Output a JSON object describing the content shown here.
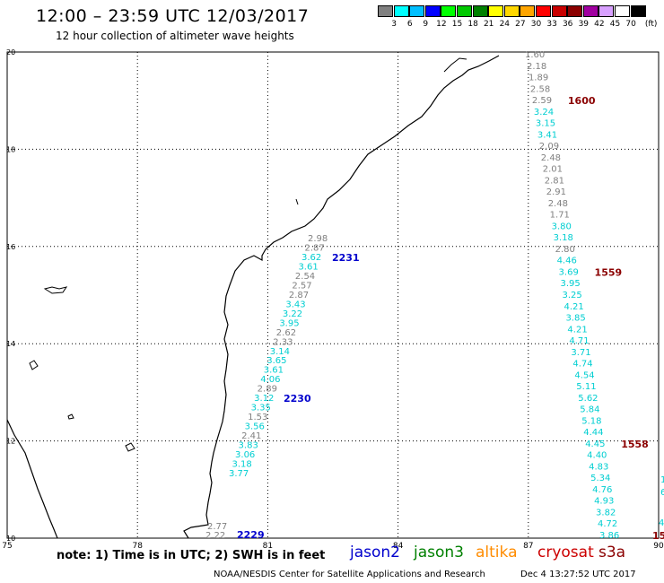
{
  "header": {
    "title": "12:00 – 23:59 UTC 12/03/2017",
    "subtitle": "12 hour collection of altimeter wave heights"
  },
  "colorbar": {
    "labels": [
      "3",
      "6",
      "9",
      "12",
      "15",
      "18",
      "21",
      "24",
      "27",
      "30",
      "33",
      "36",
      "39",
      "42",
      "45",
      "70"
    ],
    "unit": "(ft)",
    "colors": [
      "#808080",
      "#00ffff",
      "#00bfff",
      "#0000ff",
      "#00ff00",
      "#00c800",
      "#008000",
      "#ffff00",
      "#ffd700",
      "#ffa500",
      "#ff0000",
      "#c80000",
      "#8b0000",
      "#a000a0",
      "#d8a0ff",
      "#ffffff",
      "#000000"
    ]
  },
  "axes": {
    "lon_ticks": [
      "75",
      "78",
      "81",
      "84",
      "87",
      "90"
    ],
    "lat_ticks": [
      "20",
      "18",
      "16",
      "14",
      "12",
      "10"
    ],
    "lon_range": [
      75,
      90
    ],
    "lat_range": [
      10,
      20
    ]
  },
  "tracks": [
    {
      "time": "1600",
      "color": "#8b0000",
      "values": [
        {
          "v": "1.60",
          "c": "#808080"
        },
        {
          "v": "2.18",
          "c": "#808080"
        },
        {
          "v": "1.89",
          "c": "#808080"
        },
        {
          "v": "2.58",
          "c": "#808080"
        },
        {
          "v": "2.59",
          "c": "#808080"
        },
        {
          "v": "3.24",
          "c": "#00ced1"
        },
        {
          "v": "3.15",
          "c": "#00ced1"
        },
        {
          "v": "3.41",
          "c": "#00ced1"
        },
        {
          "v": "2.09",
          "c": "#808080"
        },
        {
          "v": "2.48",
          "c": "#808080"
        },
        {
          "v": "2.01",
          "c": "#808080"
        },
        {
          "v": "2.81",
          "c": "#808080"
        },
        {
          "v": "2.91",
          "c": "#808080"
        },
        {
          "v": "2.48",
          "c": "#808080"
        },
        {
          "v": "1.71",
          "c": "#808080"
        },
        {
          "v": "3.80",
          "c": "#00ced1"
        },
        {
          "v": "3.18",
          "c": "#00ced1"
        },
        {
          "v": "2.80",
          "c": "#808080"
        },
        {
          "v": "4.46",
          "c": "#00ced1"
        },
        {
          "v": "3.69",
          "c": "#00ced1"
        },
        {
          "v": "3.95",
          "c": "#00ced1"
        },
        {
          "v": "3.25",
          "c": "#00ced1"
        },
        {
          "v": "4.21",
          "c": "#00ced1"
        },
        {
          "v": "3.85",
          "c": "#00ced1"
        },
        {
          "v": "4.21",
          "c": "#00ced1"
        },
        {
          "v": "4.71",
          "c": "#00ced1"
        },
        {
          "v": "3.71",
          "c": "#00ced1"
        },
        {
          "v": "4.74",
          "c": "#00ced1"
        },
        {
          "v": "4.54",
          "c": "#00ced1"
        },
        {
          "v": "5.11",
          "c": "#00ced1"
        },
        {
          "v": "5.62",
          "c": "#00ced1"
        },
        {
          "v": "5.84",
          "c": "#00ced1"
        },
        {
          "v": "5.18",
          "c": "#00ced1"
        },
        {
          "v": "4.44",
          "c": "#00ced1"
        },
        {
          "v": "4.45",
          "c": "#00ced1"
        },
        {
          "v": "4.40",
          "c": "#00ced1"
        },
        {
          "v": "4.83",
          "c": "#00ced1"
        },
        {
          "v": "5.34",
          "c": "#00ced1"
        },
        {
          "v": "4.76",
          "c": "#00ced1"
        },
        {
          "v": "4.93",
          "c": "#00ced1"
        },
        {
          "v": "3.82",
          "c": "#00ced1"
        },
        {
          "v": "4.72",
          "c": "#00ced1"
        },
        {
          "v": "3.86",
          "c": "#00ced1"
        }
      ],
      "time_labels": [
        "1600",
        "1559",
        "1558",
        "15"
      ]
    },
    {
      "time": "2231",
      "color": "#0000cd",
      "values": [
        {
          "v": "2.98",
          "c": "#808080"
        },
        {
          "v": "2.87",
          "c": "#808080"
        },
        {
          "v": "3.62",
          "c": "#00ced1"
        },
        {
          "v": "3.61",
          "c": "#00ced1"
        },
        {
          "v": "2.54",
          "c": "#808080"
        },
        {
          "v": "2.57",
          "c": "#808080"
        },
        {
          "v": "2.87",
          "c": "#808080"
        },
        {
          "v": "3.43",
          "c": "#00ced1"
        },
        {
          "v": "3.22",
          "c": "#00ced1"
        },
        {
          "v": "3.95",
          "c": "#00ced1"
        },
        {
          "v": "2.62",
          "c": "#808080"
        },
        {
          "v": "2.33",
          "c": "#808080"
        },
        {
          "v": "3.14",
          "c": "#00ced1"
        },
        {
          "v": "3.65",
          "c": "#00ced1"
        },
        {
          "v": "3.61",
          "c": "#00ced1"
        },
        {
          "v": "4.06",
          "c": "#00ced1"
        },
        {
          "v": "2.89",
          "c": "#808080"
        },
        {
          "v": "3.12",
          "c": "#00ced1"
        },
        {
          "v": "3.35",
          "c": "#00ced1"
        },
        {
          "v": "1.53",
          "c": "#808080"
        },
        {
          "v": "3.56",
          "c": "#00ced1"
        },
        {
          "v": "2.41",
          "c": "#808080"
        },
        {
          "v": "3.83",
          "c": "#00ced1"
        },
        {
          "v": "3.06",
          "c": "#00ced1"
        },
        {
          "v": "3.18",
          "c": "#00ced1"
        },
        {
          "v": "3.77",
          "c": "#00ced1"
        }
      ],
      "time_labels": [
        "2231",
        "2230"
      ]
    },
    {
      "time": "2229",
      "color": "#0000cd",
      "values": [
        {
          "v": "2.77",
          "c": "#808080"
        },
        {
          "v": "2.22",
          "c": "#808080"
        }
      ],
      "time_labels": [
        "2229"
      ]
    }
  ],
  "edge_values": [
    "1",
    "6",
    "4"
  ],
  "footer": {
    "note": "note: 1) Time is in UTC; 2) SWH is in feet",
    "missions": [
      {
        "name": "jason2",
        "color": "#0000cd"
      },
      {
        "name": "jason3",
        "color": "#008000"
      },
      {
        "name": "altika",
        "color": "#ff8c00"
      },
      {
        "name": "cryosat",
        "color": "#cc0000"
      },
      {
        "name": "s3a",
        "color": "#8b0000"
      }
    ],
    "credit": "NOAA/NESDIS Center for Satellite Applications and Research",
    "timestamp": "Dec  4 13:27:52 UTC 2017"
  }
}
